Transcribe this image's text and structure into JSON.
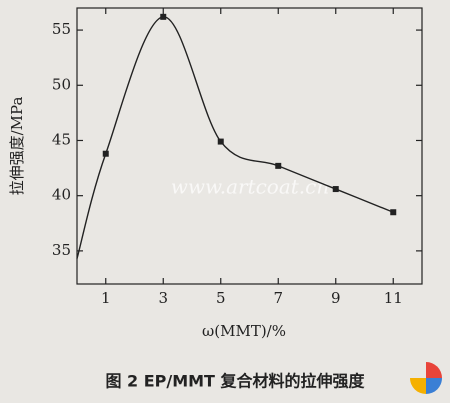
{
  "chart_data": {
    "type": "line",
    "x_label": "ω(MMT)/%",
    "y_label": "拉伸强度/MPa",
    "caption": "图 2 EP/MMT 复合材料的拉伸强度",
    "watermark": "www.artcoat.cn",
    "x": [
      0,
      1,
      3,
      5,
      7,
      9,
      11
    ],
    "series": [
      {
        "color": "#222222",
        "values": [
          34.3,
          43.8,
          56.2,
          44.9,
          42.7,
          40.6,
          38.5
        ]
      }
    ],
    "xlim": [
      0,
      12
    ],
    "xticks": [
      1,
      3,
      5,
      7,
      9,
      11
    ],
    "ylim": [
      32,
      57
    ],
    "yticks": [
      35,
      40,
      45,
      50,
      55
    ],
    "grid": false
  }
}
